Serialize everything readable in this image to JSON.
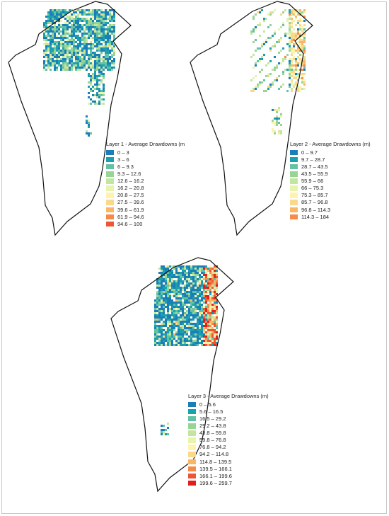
{
  "maps": [
    {
      "name": "layer-1",
      "legend": {
        "title": "Layer 1 - Average Drawdowns  (m",
        "items": [
          {
            "label": "0 – 3",
            "color": "#1a7fb8"
          },
          {
            "label": "3 – 6",
            "color": "#1ba0b0"
          },
          {
            "label": "6 – 9.3",
            "color": "#63c2a4"
          },
          {
            "label": "9.3 – 12.6",
            "color": "#98d594"
          },
          {
            "label": "12.6 – 16.2",
            "color": "#c2e6a0"
          },
          {
            "label": "16.2 – 20.8",
            "color": "#e6f4b0"
          },
          {
            "label": "20.8 – 27.5",
            "color": "#fdf3ae"
          },
          {
            "label": "27.5 – 39.6",
            "color": "#fbd98b"
          },
          {
            "label": "39.6 – 61.9",
            "color": "#f9b766"
          },
          {
            "label": "61.9 – 94.6",
            "color": "#f58a4b"
          },
          {
            "label": "94.6 – 100",
            "color": "#ee5535"
          }
        ]
      }
    },
    {
      "name": "layer-2",
      "legend": {
        "title": "Layer 2 - Average Drawdowns  (m)",
        "items": [
          {
            "label": "0 – 9.7",
            "color": "#1a7fb8"
          },
          {
            "label": "9.7 – 28.7",
            "color": "#1ba0b0"
          },
          {
            "label": "28.7 – 43.5",
            "color": "#63c2a4"
          },
          {
            "label": "43.5 – 55.9",
            "color": "#98d594"
          },
          {
            "label": "55.9 – 66",
            "color": "#c2e6a0"
          },
          {
            "label": "66 – 75.3",
            "color": "#e6f4b0"
          },
          {
            "label": "75.3 – 85.7",
            "color": "#fdf3ae"
          },
          {
            "label": "85.7 – 96.8",
            "color": "#fbd98b"
          },
          {
            "label": "96.8 – 114.3",
            "color": "#f9b766"
          },
          {
            "label": "114.3 – 184",
            "color": "#f58a4b"
          }
        ]
      }
    },
    {
      "name": "layer-3",
      "legend": {
        "title": "Layer 3 - Average Drawdowns  (m)",
        "items": [
          {
            "label": "0 – 5.6",
            "color": "#1a7fb8"
          },
          {
            "label": "5.6 – 16.5",
            "color": "#1ba0b0"
          },
          {
            "label": "16.5 – 29.2",
            "color": "#63c2a4"
          },
          {
            "label": "29.2 – 43.8",
            "color": "#98d594"
          },
          {
            "label": "43.8 – 59.8",
            "color": "#c2e6a0"
          },
          {
            "label": "59.8 – 76.8",
            "color": "#e6f4b0"
          },
          {
            "label": "76.8 – 94.2",
            "color": "#fdf3ae"
          },
          {
            "label": "94.2 – 114.8",
            "color": "#fbd98b"
          },
          {
            "label": "114.8 – 139.5",
            "color": "#f9b766"
          },
          {
            "label": "139.5 – 166.1",
            "color": "#f58a4b"
          },
          {
            "label": "166.1 – 199.6",
            "color": "#ee5535"
          },
          {
            "label": "199.6 – 259.7",
            "color": "#e0201f"
          }
        ]
      }
    }
  ]
}
